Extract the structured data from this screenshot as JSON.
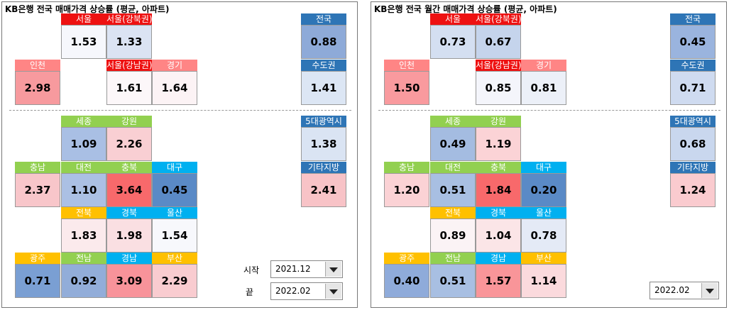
{
  "panels": [
    {
      "title": "KB은행 전국 매매가격 상승률 (평균, 아파트)",
      "tiles": [
        {
          "label": "서울",
          "value": "1.53",
          "header_color": "#ee1111",
          "fill": "#f6f7fc"
        },
        {
          "label": "서울(강북권)",
          "value": "1.33",
          "header_color": "#ee1111",
          "fill": "#dbe3f3"
        },
        {
          "label": "전국",
          "value": "0.88",
          "header_color": "#2e75b6",
          "fill": "#8eaad8"
        },
        {
          "label": "인천",
          "value": "2.98",
          "header_color": "#ff8585",
          "fill": "#f79a9e"
        },
        {
          "label": "서울(강남권)",
          "value": "1.61",
          "header_color": "#ee1111",
          "fill": "#fcf7f9"
        },
        {
          "label": "경기",
          "value": "1.64",
          "header_color": "#ff8585",
          "fill": "#fcf3f5"
        },
        {
          "label": "수도권",
          "value": "1.41",
          "header_color": "#2e75b6",
          "fill": "#dce6f4"
        },
        {
          "label": "세종",
          "value": "1.09",
          "header_color": "#92d050",
          "fill": "#a9bfe4"
        },
        {
          "label": "강원",
          "value": "2.26",
          "header_color": "#92d050",
          "fill": "#f9cfd3"
        },
        {
          "label": "5대광역시",
          "value": "1.38",
          "header_color": "#2e75b6",
          "fill": "#dae4f3"
        },
        {
          "label": "충남",
          "value": "2.37",
          "header_color": "#92d050",
          "fill": "#f8c6ca"
        },
        {
          "label": "대전",
          "value": "1.10",
          "header_color": "#92d050",
          "fill": "#abc0e4"
        },
        {
          "label": "충북",
          "value": "3.64",
          "header_color": "#92d050",
          "fill": "#f8696b"
        },
        {
          "label": "대구",
          "value": "0.45",
          "header_color": "#00b0f0",
          "fill": "#5a8ac6"
        },
        {
          "label": "기타지방",
          "value": "2.41",
          "header_color": "#2e75b6",
          "fill": "#f8c3c7"
        },
        {
          "label": "전북",
          "value": "1.83",
          "header_color": "#ffc000",
          "fill": "#fbeaec"
        },
        {
          "label": "경북",
          "value": "1.98",
          "header_color": "#00b0f0",
          "fill": "#fadfe2"
        },
        {
          "label": "울산",
          "value": "1.54",
          "header_color": "#00b0f0",
          "fill": "#f7f8fc"
        },
        {
          "label": "광주",
          "value": "0.71",
          "header_color": "#ffc000",
          "fill": "#7a9fd3"
        },
        {
          "label": "전남",
          "value": "0.92",
          "header_color": "#92d050",
          "fill": "#92add9"
        },
        {
          "label": "경남",
          "value": "3.09",
          "header_color": "#00b0f0",
          "fill": "#f8939a"
        },
        {
          "label": "부산",
          "value": "2.29",
          "header_color": "#ffc000",
          "fill": "#f9ccd0"
        }
      ],
      "controls": [
        {
          "label": "시작",
          "value": "2021.12"
        },
        {
          "label": "끝",
          "value": "2022.02"
        }
      ]
    },
    {
      "title": "KB은행 전국 월간 매매가격 상승률 (평균, 아파트)",
      "tiles": [
        {
          "label": "서울",
          "value": "0.73",
          "header_color": "#ee1111",
          "fill": "#d4dff1"
        },
        {
          "label": "서울(강북권)",
          "value": "0.67",
          "header_color": "#ee1111",
          "fill": "#c5d4ec"
        },
        {
          "label": "전국",
          "value": "0.45",
          "header_color": "#2e75b6",
          "fill": "#9ab4de"
        },
        {
          "label": "인천",
          "value": "1.50",
          "header_color": "#ff8585",
          "fill": "#f99a9e"
        },
        {
          "label": "서울(강남권)",
          "value": "0.85",
          "header_color": "#ee1111",
          "fill": "#f4f5fb"
        },
        {
          "label": "경기",
          "value": "0.81",
          "header_color": "#ff8585",
          "fill": "#ecf0f8"
        },
        {
          "label": "수도권",
          "value": "0.71",
          "header_color": "#2e75b6",
          "fill": "#cfdbf0"
        },
        {
          "label": "세종",
          "value": "0.49",
          "header_color": "#92d050",
          "fill": "#a4bce1"
        },
        {
          "label": "강원",
          "value": "1.19",
          "header_color": "#92d050",
          "fill": "#fbd3d6"
        },
        {
          "label": "5대광역시",
          "value": "0.68",
          "header_color": "#2e75b6",
          "fill": "#c9d7ee"
        },
        {
          "label": "충남",
          "value": "1.20",
          "header_color": "#92d050",
          "fill": "#fbd2d5"
        },
        {
          "label": "대전",
          "value": "0.51",
          "header_color": "#92d050",
          "fill": "#a8bfe2"
        },
        {
          "label": "충북",
          "value": "1.84",
          "header_color": "#92d050",
          "fill": "#f8696b"
        },
        {
          "label": "대구",
          "value": "0.20",
          "header_color": "#00b0f0",
          "fill": "#5a8ac6"
        },
        {
          "label": "기타지방",
          "value": "1.24",
          "header_color": "#2e75b6",
          "fill": "#facbcf"
        },
        {
          "label": "전북",
          "value": "0.89",
          "header_color": "#ffc000",
          "fill": "#fbf3f5"
        },
        {
          "label": "경북",
          "value": "1.04",
          "header_color": "#00b0f0",
          "fill": "#fbe5e7"
        },
        {
          "label": "울산",
          "value": "0.78",
          "header_color": "#00b0f0",
          "fill": "#e4eaf6"
        },
        {
          "label": "광주",
          "value": "0.40",
          "header_color": "#ffc000",
          "fill": "#8fabda"
        },
        {
          "label": "전남",
          "value": "0.51",
          "header_color": "#92d050",
          "fill": "#a8bfe2"
        },
        {
          "label": "경남",
          "value": "1.57",
          "header_color": "#00b0f0",
          "fill": "#f99599"
        },
        {
          "label": "부산",
          "value": "1.14",
          "header_color": "#ffc000",
          "fill": "#fbdadd"
        }
      ],
      "controls": [
        {
          "value": "2022.02"
        }
      ]
    }
  ]
}
